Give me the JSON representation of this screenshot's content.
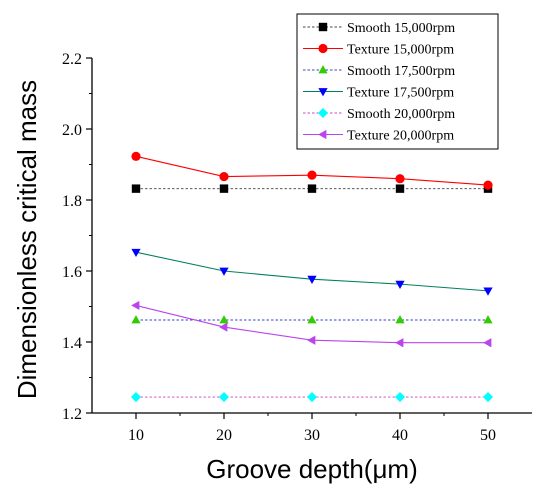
{
  "chart_data": {
    "type": "line",
    "xlabel": "Groove depth(μm)",
    "ylabel": "Dimensionless critical mass",
    "xlim": [
      5,
      55
    ],
    "ylim": [
      1.2,
      2.2
    ],
    "x": [
      10,
      20,
      30,
      40,
      50
    ],
    "x_ticks": [
      "10",
      "20",
      "30",
      "40",
      "50"
    ],
    "y_ticks": [
      "1.2",
      "1.4",
      "1.6",
      "1.8",
      "2.0",
      "2.2"
    ],
    "grid": false,
    "legend_position": "top-right",
    "series": [
      {
        "name": "Smooth 15,000rpm",
        "values": [
          1.832,
          1.832,
          1.832,
          1.832,
          1.832
        ],
        "color": "#000000",
        "marker": "square",
        "dashed": true
      },
      {
        "name": "Texture 15,000rpm",
        "values": [
          1.923,
          1.866,
          1.87,
          1.86,
          1.842
        ],
        "color": "#ff0000",
        "marker": "circle",
        "dashed": false
      },
      {
        "name": "Smooth 17,500rpm",
        "values": [
          1.462,
          1.462,
          1.462,
          1.462,
          1.462
        ],
        "color": "#33cc00",
        "marker": "triangle-up",
        "dashed": true
      },
      {
        "name": "Texture 17,500rpm",
        "values": [
          1.653,
          1.6,
          1.577,
          1.563,
          1.544
        ],
        "color": "#0000ff",
        "marker": "triangle-down",
        "dashed": false
      },
      {
        "name": "Smooth 20,000rpm",
        "values": [
          1.245,
          1.245,
          1.245,
          1.245,
          1.245
        ],
        "color": "#00ffff",
        "marker": "diamond",
        "dashed": true
      },
      {
        "name": "Texture 20,000rpm",
        "values": [
          1.503,
          1.442,
          1.405,
          1.398,
          1.398
        ],
        "color": "#bb44ee",
        "marker": "triangle-left",
        "dashed": false
      }
    ],
    "line_colors": {
      "Smooth 15,000rpm": "#444444",
      "Texture 15,000rpm": "#ff0000",
      "Smooth 17,500rpm": "#3344cc",
      "Texture 17,500rpm": "#008060",
      "Smooth 20,000rpm": "#cc44cc",
      "Texture 20,000rpm": "#bb44ee"
    }
  }
}
